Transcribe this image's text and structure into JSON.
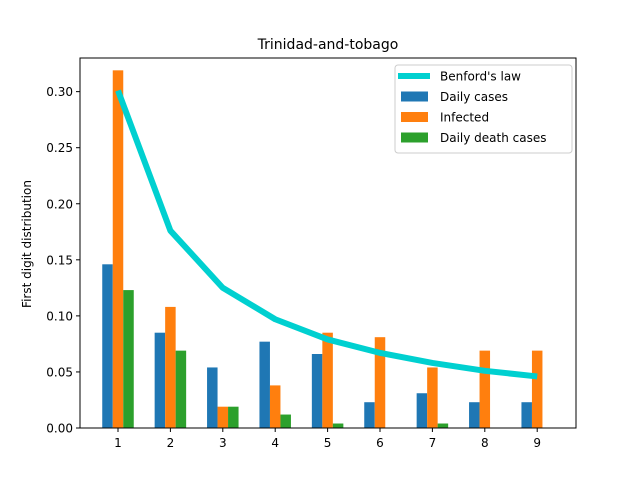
{
  "chart_data": {
    "type": "bar",
    "title": "Trinidad-and-tobago",
    "xlabel": "",
    "ylabel": "First digit distribution",
    "categories": [
      "1",
      "2",
      "3",
      "4",
      "5",
      "6",
      "7",
      "8",
      "9"
    ],
    "ylim": [
      0,
      0.33
    ],
    "yticks": [
      "0.00",
      "0.05",
      "0.10",
      "0.15",
      "0.20",
      "0.25",
      "0.30"
    ],
    "grid": false,
    "legend_position": "top-right",
    "series": [
      {
        "name": "Daily cases",
        "kind": "bar",
        "color": "#1f77b4",
        "values": [
          0.146,
          0.085,
          0.054,
          0.077,
          0.066,
          0.023,
          0.031,
          0.023,
          0.023
        ]
      },
      {
        "name": "Infected",
        "kind": "bar",
        "color": "#ff7f0e",
        "values": [
          0.319,
          0.108,
          0.019,
          0.038,
          0.085,
          0.081,
          0.054,
          0.069,
          0.069
        ]
      },
      {
        "name": "Daily death cases",
        "kind": "bar",
        "color": "#2ca02c",
        "values": [
          0.123,
          0.069,
          0.019,
          0.012,
          0.004,
          0.0,
          0.004,
          0.0,
          0.0
        ]
      }
    ],
    "line": {
      "name": "Benford's law",
      "kind": "line",
      "color": "#00d0d0",
      "values": [
        0.301,
        0.176,
        0.125,
        0.097,
        0.079,
        0.067,
        0.058,
        0.051,
        0.046
      ]
    }
  }
}
